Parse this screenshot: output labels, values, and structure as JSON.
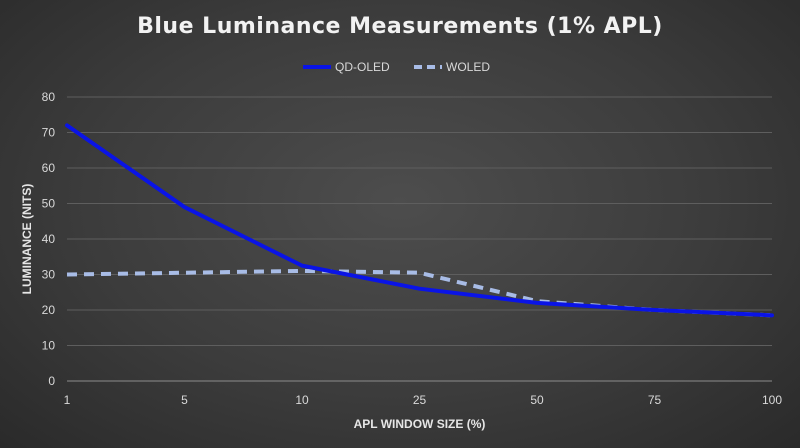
{
  "chart_data": {
    "type": "line",
    "title": "Blue Luminance Measurements (1% APL)",
    "xlabel": "APL WINDOW SIZE (%)",
    "ylabel": "LUMINANCE (NITS)",
    "categories": [
      "1",
      "5",
      "10",
      "25",
      "50",
      "75",
      "100"
    ],
    "ylim": [
      0,
      80
    ],
    "yticks": [
      0,
      10,
      20,
      30,
      40,
      50,
      60,
      70,
      80
    ],
    "grid": true,
    "legend_position": "top",
    "series": [
      {
        "name": "QD-OLED",
        "color": "#0a14e6",
        "style": "solid",
        "values": [
          72,
          49,
          32.5,
          26,
          22,
          20,
          18.5
        ]
      },
      {
        "name": "WOLED",
        "color": "#a8bce6",
        "style": "dashed",
        "values": [
          30,
          30.5,
          31,
          30.5,
          22.5,
          20,
          18.5
        ]
      }
    ]
  }
}
